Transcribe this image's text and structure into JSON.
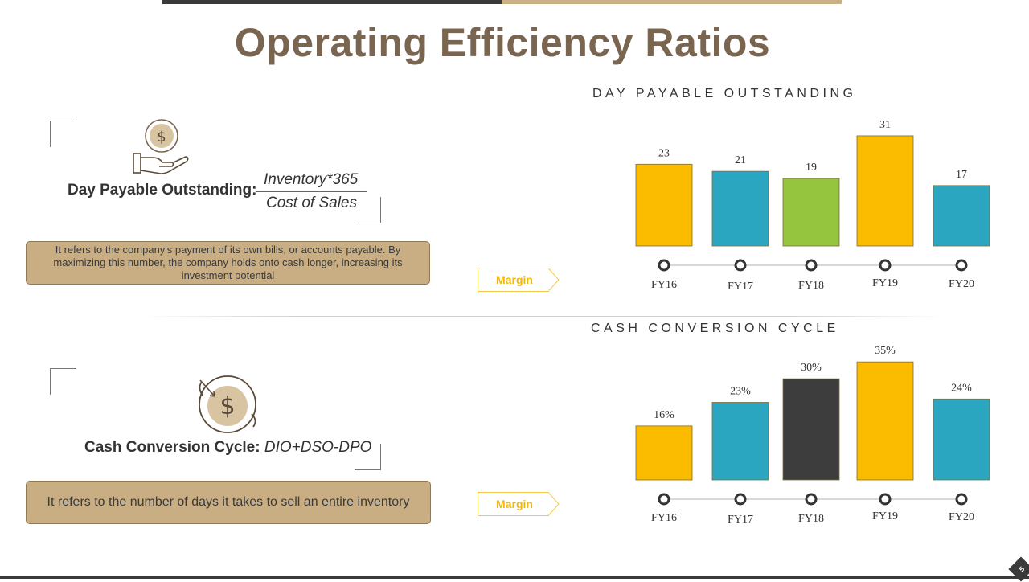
{
  "header": {
    "title": "Operating Efficiency Ratios"
  },
  "section1": {
    "label": "Day Payable Outstanding:",
    "numerator": "Inventory*365",
    "denominator": "Cost of Sales",
    "description": "It refers to the company's payment of its own bills, or accounts payable. By maximizing  this number, the company holds onto cash longer, increasing its investment potential",
    "margin_label": "Margin",
    "icon": "hand-dollar-icon"
  },
  "section2": {
    "label": "Cash Conversion Cycle:",
    "formula": "DIO+DSO-DPO",
    "description": "It refers to the number of days it takes to sell an entire inventory",
    "margin_label": "Margin",
    "icon": "dollar-cycle-icon"
  },
  "page_number": "5",
  "colors": {
    "yellow": "#fbbc00",
    "teal": "#2aa6c0",
    "green": "#95c43e",
    "dark": "#3d3d3d",
    "tan": "#c9ae84",
    "title": "#7a6650"
  },
  "chart_data": [
    {
      "type": "bar",
      "title": "DAY PAYABLE OUTSTANDING",
      "categories": [
        "FY16",
        "FY17",
        "FY18",
        "FY19",
        "FY20"
      ],
      "values": [
        23,
        21,
        19,
        31,
        17
      ],
      "labels": [
        "23",
        "21",
        "19",
        "31",
        "17"
      ],
      "bar_colors": [
        "#fbbc00",
        "#2aa6c0",
        "#95c43e",
        "#fbbc00",
        "#2aa6c0"
      ],
      "ylim": [
        0,
        38
      ],
      "xlabel": "",
      "ylabel": "",
      "grid": false,
      "legend": "none"
    },
    {
      "type": "bar",
      "title": "CASH CONVERSION CYCLE",
      "categories": [
        "FY16",
        "FY17",
        "FY18",
        "FY19",
        "FY20"
      ],
      "values": [
        16,
        23,
        30,
        35,
        24
      ],
      "labels": [
        "16%",
        "23%",
        "30%",
        "35%",
        "24%"
      ],
      "bar_colors": [
        "#fbbc00",
        "#2aa6c0",
        "#3d3d3d",
        "#fbbc00",
        "#2aa6c0"
      ],
      "ylim": [
        0,
        41
      ],
      "xlabel": "",
      "ylabel": "",
      "grid": false,
      "legend": "none"
    }
  ]
}
